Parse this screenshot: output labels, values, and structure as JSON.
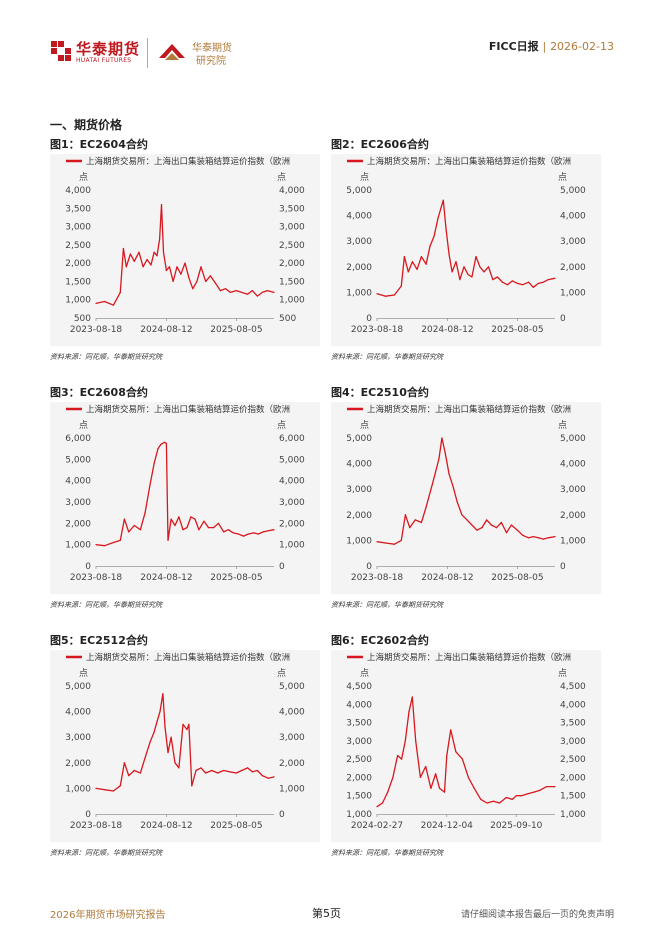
{
  "header": {
    "company_cn": "华泰期货",
    "company_en": "HUATAI FUTURES",
    "institute_line1": "华泰期货",
    "institute_line2": "研究院",
    "report_name": "FICC日报",
    "separator": "|",
    "report_date": "2026-02-13"
  },
  "section_title": "一、期货价格",
  "source_text": "资料来源：同花顺，华泰期货研究院",
  "legend_text": "上海期货交易所：上海出口集装箱结算运价指数（欧洲",
  "unit_label": "点",
  "colors": {
    "series": "#d7181f",
    "brand": "#c01920",
    "gold": "#b07a3a"
  },
  "figures": [
    {
      "title": "图1：EC2604合约",
      "chart_data": {
        "type": "line",
        "series": [
          {
            "name": "上海期货交易所：上海出口集装箱结算运价指数（欧洲",
            "x": [
              "2023-08-18",
              "2023-10-01",
              "2023-11-15",
              "2023-12-20",
              "2024-01-05",
              "2024-01-20",
              "2024-02-10",
              "2024-03-01",
              "2024-03-25",
              "2024-04-15",
              "2024-05-05",
              "2024-05-25",
              "2024-06-10",
              "2024-06-25",
              "2024-07-08",
              "2024-07-18",
              "2024-07-28",
              "2024-08-12",
              "2024-08-28",
              "2024-09-15",
              "2024-10-05",
              "2024-10-25",
              "2024-11-15",
              "2024-12-05",
              "2024-12-25",
              "2025-01-15",
              "2025-02-05",
              "2025-03-01",
              "2025-03-25",
              "2025-04-20",
              "2025-05-15",
              "2025-06-10",
              "2025-07-05",
              "2025-08-05",
              "2025-09-01",
              "2025-10-01",
              "2025-10-25",
              "2025-11-20",
              "2025-12-15",
              "2026-01-10",
              "2026-02-13"
            ],
            "y": [
              900,
              950,
              850,
              1200,
              2400,
              1900,
              2250,
              2050,
              2300,
              1900,
              2100,
              1950,
              2300,
              2200,
              2650,
              3600,
              2300,
              1800,
              1900,
              1500,
              1900,
              1700,
              2000,
              1600,
              1300,
              1500,
              1900,
              1500,
              1650,
              1450,
              1250,
              1300,
              1200,
              1250,
              1200,
              1150,
              1250,
              1100,
              1200,
              1250,
              1200
            ]
          }
        ],
        "x_ticks": [
          "2023-08-18",
          "2024-08-12",
          "2025-08-05"
        ],
        "y_ticks": [
          500,
          1000,
          1500,
          2000,
          2500,
          3000,
          3500,
          4000
        ],
        "ylim": [
          500,
          4000
        ]
      }
    },
    {
      "title": "图2：EC2606合约",
      "chart_data": {
        "type": "line",
        "series": [
          {
            "name": "上海期货交易所：上海出口集装箱结算运价指数（欧洲",
            "x": [
              "2023-08-18",
              "2023-10-01",
              "2023-11-15",
              "2023-12-20",
              "2024-01-05",
              "2024-01-25",
              "2024-02-15",
              "2024-03-10",
              "2024-04-01",
              "2024-04-25",
              "2024-05-15",
              "2024-06-05",
              "2024-06-25",
              "2024-07-10",
              "2024-07-22",
              "2024-08-05",
              "2024-08-20",
              "2024-09-05",
              "2024-09-25",
              "2024-10-15",
              "2024-11-05",
              "2024-11-25",
              "2024-12-15",
              "2025-01-05",
              "2025-01-25",
              "2025-02-15",
              "2025-03-10",
              "2025-04-01",
              "2025-04-25",
              "2025-05-20",
              "2025-06-15",
              "2025-07-10",
              "2025-08-05",
              "2025-09-01",
              "2025-10-01",
              "2025-10-25",
              "2025-11-20",
              "2025-12-15",
              "2026-01-10",
              "2026-02-13"
            ],
            "y": [
              950,
              850,
              900,
              1250,
              2400,
              1800,
              2200,
              1900,
              2400,
              2100,
              2800,
              3200,
              3900,
              4300,
              4600,
              3500,
              2500,
              1800,
              2200,
              1500,
              2000,
              1700,
              1600,
              2400,
              2000,
              1800,
              2000,
              1500,
              1600,
              1400,
              1300,
              1450,
              1350,
              1300,
              1400,
              1200,
              1350,
              1400,
              1500,
              1550
            ]
          }
        ],
        "x_ticks": [
          "2023-08-18",
          "2024-08-12",
          "2025-08-05"
        ],
        "y_ticks": [
          0,
          1000,
          2000,
          3000,
          4000,
          5000
        ],
        "ylim": [
          0,
          5000
        ]
      }
    },
    {
      "title": "图3：EC2608合约",
      "chart_data": {
        "type": "line",
        "series": [
          {
            "name": "上海期货交易所：上海出口集装箱结算运价指数（欧洲",
            "x": [
              "2023-08-18",
              "2023-10-01",
              "2023-11-15",
              "2023-12-20",
              "2024-01-10",
              "2024-02-01",
              "2024-03-01",
              "2024-04-01",
              "2024-04-25",
              "2024-05-20",
              "2024-06-10",
              "2024-06-30",
              "2024-07-15",
              "2024-08-01",
              "2024-08-12",
              "2024-08-20",
              "2024-09-05",
              "2024-09-25",
              "2024-10-15",
              "2024-11-05",
              "2024-11-25",
              "2024-12-15",
              "2025-01-05",
              "2025-01-25",
              "2025-02-20",
              "2025-03-15",
              "2025-04-10",
              "2025-05-05",
              "2025-06-01",
              "2025-06-25",
              "2025-07-20",
              "2025-08-15",
              "2025-09-10",
              "2025-10-05",
              "2025-11-01",
              "2025-11-25",
              "2025-12-20",
              "2026-01-15",
              "2026-02-13"
            ],
            "y": [
              1000,
              950,
              1100,
              1200,
              2200,
              1600,
              1900,
              1700,
              2500,
              3800,
              4800,
              5500,
              5700,
              5800,
              5750,
              1200,
              2200,
              1900,
              2300,
              1700,
              1800,
              2300,
              2200,
              1700,
              2100,
              1800,
              1800,
              2000,
              1600,
              1700,
              1550,
              1500,
              1400,
              1500,
              1550,
              1500,
              1600,
              1650,
              1700
            ]
          }
        ],
        "x_ticks": [
          "2023-08-18",
          "2024-08-12",
          "2025-08-05"
        ],
        "y_ticks": [
          0,
          1000,
          2000,
          3000,
          4000,
          5000,
          6000
        ],
        "ylim": [
          0,
          6000
        ]
      }
    },
    {
      "title": "图4：EC2510合约",
      "chart_data": {
        "type": "line",
        "series": [
          {
            "name": "上海期货交易所：上海出口集装箱结算运价指数（欧洲",
            "x": [
              "2023-08-18",
              "2023-10-01",
              "2023-11-15",
              "2023-12-20",
              "2024-01-10",
              "2024-02-01",
              "2024-03-01",
              "2024-04-01",
              "2024-04-25",
              "2024-05-20",
              "2024-06-10",
              "2024-06-30",
              "2024-07-15",
              "2024-08-01",
              "2024-08-20",
              "2024-09-10",
              "2024-10-01",
              "2024-10-25",
              "2024-11-20",
              "2024-12-15",
              "2025-01-10",
              "2025-02-05",
              "2025-03-01",
              "2025-03-25",
              "2025-04-20",
              "2025-05-15",
              "2025-06-10",
              "2025-07-05",
              "2025-08-05",
              "2025-09-01",
              "2025-10-01",
              "2025-10-25",
              "2025-11-20",
              "2025-12-15",
              "2026-01-10",
              "2026-02-13"
            ],
            "y": [
              950,
              900,
              850,
              1000,
              2000,
              1500,
              1800,
              1700,
              2300,
              3000,
              3600,
              4200,
              5000,
              4400,
              3600,
              3100,
              2500,
              2000,
              1800,
              1600,
              1400,
              1500,
              1800,
              1600,
              1500,
              1700,
              1300,
              1600,
              1400,
              1200,
              1100,
              1150,
              1100,
              1050,
              1100,
              1150
            ]
          }
        ],
        "x_ticks": [
          "2023-08-18",
          "2024-08-12",
          "2025-08-05"
        ],
        "y_ticks": [
          0,
          1000,
          2000,
          3000,
          4000,
          5000
        ],
        "ylim": [
          0,
          5000
        ]
      }
    },
    {
      "title": "图5：EC2512合约",
      "chart_data": {
        "type": "line",
        "series": [
          {
            "name": "上海期货交易所：上海出口集装箱结算运价指数（欧洲",
            "x": [
              "2023-08-18",
              "2023-10-01",
              "2023-11-15",
              "2023-12-20",
              "2024-01-10",
              "2024-02-01",
              "2024-03-01",
              "2024-04-01",
              "2024-04-25",
              "2024-05-20",
              "2024-06-10",
              "2024-06-25",
              "2024-07-10",
              "2024-07-25",
              "2024-08-05",
              "2024-08-20",
              "2024-09-05",
              "2024-09-25",
              "2024-10-15",
              "2024-11-05",
              "2024-11-25",
              "2024-12-05",
              "2024-12-20",
              "2025-01-10",
              "2025-02-05",
              "2025-03-01",
              "2025-04-01",
              "2025-05-01",
              "2025-06-01",
              "2025-07-01",
              "2025-08-05",
              "2025-09-01",
              "2025-10-01",
              "2025-10-25",
              "2025-11-20",
              "2025-12-15",
              "2026-01-15",
              "2026-02-13"
            ],
            "y": [
              1000,
              950,
              900,
              1100,
              2000,
              1500,
              1700,
              1600,
              2200,
              2800,
              3200,
              3600,
              4000,
              4700,
              3400,
              2400,
              3000,
              2000,
              1800,
              3500,
              3300,
              3500,
              1100,
              1700,
              1800,
              1600,
              1700,
              1600,
              1700,
              1650,
              1600,
              1700,
              1800,
              1650,
              1700,
              1500,
              1400,
              1450
            ]
          }
        ],
        "x_ticks": [
          "2023-08-18",
          "2024-08-12",
          "2025-08-05"
        ],
        "y_ticks": [
          0,
          1000,
          2000,
          3000,
          4000,
          5000
        ],
        "ylim": [
          0,
          5000
        ]
      }
    },
    {
      "title": "图6：EC2602合约",
      "chart_data": {
        "type": "line",
        "series": [
          {
            "name": "上海期货交易所：上海出口集装箱结算运价指数（欧洲",
            "x": [
              "2024-02-27",
              "2024-03-20",
              "2024-04-10",
              "2024-05-01",
              "2024-05-20",
              "2024-06-05",
              "2024-06-20",
              "2024-07-05",
              "2024-07-18",
              "2024-08-01",
              "2024-08-20",
              "2024-09-10",
              "2024-10-01",
              "2024-10-20",
              "2024-11-05",
              "2024-11-25",
              "2024-12-04",
              "2024-12-20",
              "2025-01-10",
              "2025-02-05",
              "2025-03-01",
              "2025-03-25",
              "2025-04-20",
              "2025-05-15",
              "2025-06-10",
              "2025-07-05",
              "2025-08-01",
              "2025-08-25",
              "2025-09-10",
              "2025-10-01",
              "2025-10-25",
              "2025-11-20",
              "2025-12-15",
              "2026-01-10",
              "2026-02-13"
            ],
            "y": [
              1200,
              1300,
              1600,
              2000,
              2600,
              2500,
              3000,
              3800,
              4200,
              3000,
              2000,
              2300,
              1700,
              2100,
              1700,
              1600,
              2600,
              3300,
              2700,
              2500,
              2000,
              1700,
              1400,
              1300,
              1350,
              1300,
              1450,
              1400,
              1500,
              1500,
              1550,
              1600,
              1650,
              1750,
              1750
            ]
          }
        ],
        "x_ticks": [
          "2024-02-27",
          "2024-12-04",
          "2025-09-10"
        ],
        "y_ticks": [
          1000,
          1500,
          2000,
          2500,
          3000,
          3500,
          4000,
          4500
        ],
        "ylim": [
          1000,
          4500
        ]
      }
    }
  ],
  "footer": {
    "left": "2026年期货市场研究报告",
    "page": "第5页",
    "right": "请仔细阅读本报告最后一页的免责声明"
  }
}
